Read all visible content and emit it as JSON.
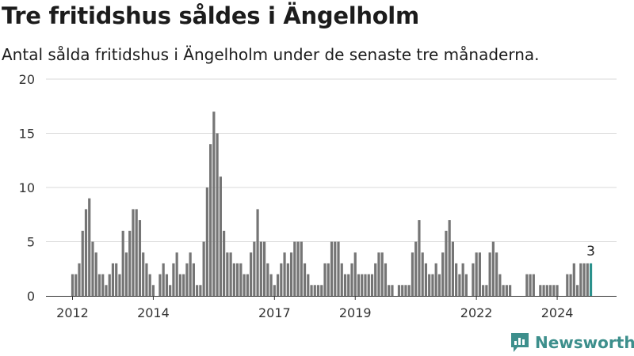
{
  "header": {
    "title": "Tre fritidshus såldes i Ängelholm",
    "subtitle": "Antal sålda fritidshus i Ängelholm under de senaste tre månaderna."
  },
  "brand": {
    "name": "Newsworthy",
    "icon": "newsworthy-logo-icon",
    "color": "#3d8f8c"
  },
  "chart_data": {
    "type": "bar",
    "title": "Tre fritidshus såldes i Ängelholm",
    "subtitle": "Antal sålda fritidshus i Ängelholm under de senaste tre månaderna.",
    "xlabel": "",
    "ylabel": "",
    "ylim": [
      0,
      20
    ],
    "yticks": [
      0,
      5,
      10,
      15,
      20
    ],
    "xticks": [
      {
        "label": "2012",
        "date": "2012-01"
      },
      {
        "label": "2014",
        "date": "2014-01"
      },
      {
        "label": "2017",
        "date": "2017-01"
      },
      {
        "label": "2019",
        "date": "2019-01"
      },
      {
        "label": "2022",
        "date": "2022-01"
      },
      {
        "label": "2024",
        "date": "2024-01"
      }
    ],
    "grid": true,
    "bar_color": "#757575",
    "highlight_color": "#2b918c",
    "start_date": "2012-01",
    "values": [
      2,
      2,
      3,
      6,
      8,
      9,
      5,
      4,
      2,
      2,
      1,
      2,
      3,
      3,
      2,
      6,
      4,
      6,
      8,
      8,
      7,
      4,
      3,
      2,
      1,
      0,
      2,
      3,
      2,
      1,
      3,
      4,
      2,
      2,
      3,
      4,
      3,
      1,
      1,
      5,
      10,
      14,
      17,
      15,
      11,
      6,
      4,
      4,
      3,
      3,
      3,
      2,
      2,
      4,
      5,
      8,
      5,
      5,
      3,
      2,
      1,
      2,
      3,
      4,
      3,
      4,
      5,
      5,
      5,
      3,
      2,
      1,
      1,
      1,
      1,
      3,
      3,
      5,
      5,
      5,
      3,
      2,
      2,
      3,
      4,
      2,
      2,
      2,
      2,
      2,
      3,
      4,
      4,
      3,
      1,
      1,
      0,
      1,
      1,
      1,
      1,
      4,
      5,
      7,
      4,
      3,
      2,
      2,
      3,
      2,
      4,
      6,
      7,
      5,
      3,
      2,
      3,
      2,
      0,
      3,
      4,
      4,
      1,
      1,
      4,
      5,
      4,
      2,
      1,
      1,
      1,
      0,
      0,
      0,
      0,
      2,
      2,
      2,
      0,
      1,
      1,
      1,
      1,
      1,
      1,
      0,
      0,
      2,
      2,
      3,
      1,
      3,
      3,
      3,
      3
    ],
    "highlighted_last": true,
    "annotation": {
      "label": "3",
      "value": 3
    }
  }
}
